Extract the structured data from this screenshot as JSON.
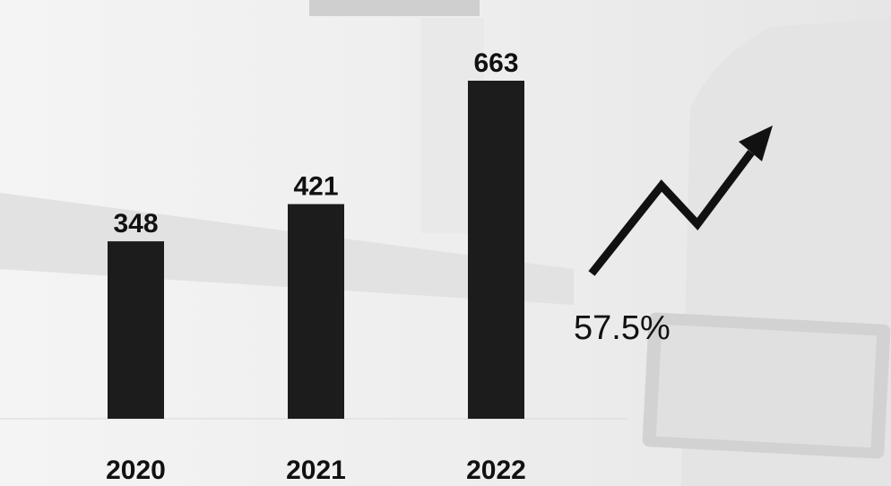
{
  "chart_data": {
    "type": "bar",
    "categories": [
      "2020",
      "2021",
      "2022"
    ],
    "values": [
      348,
      421,
      663
    ],
    "color": "#1c1c1c",
    "annotation": "57.5%"
  }
}
